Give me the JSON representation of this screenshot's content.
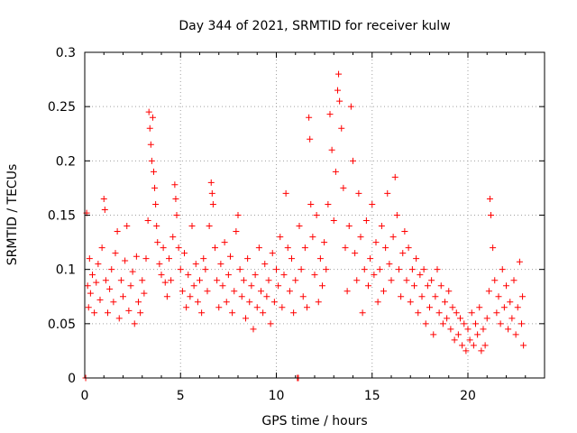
{
  "chart_data": {
    "type": "scatter",
    "title": "Day 344 of 2021, SRMTID for receiver kulw",
    "xlabel": "GPS time / hours",
    "ylabel": "SRMTID / TECUs",
    "xlim": [
      0,
      24
    ],
    "ylim": [
      0,
      0.3
    ],
    "xticks": [
      0,
      5,
      10,
      15,
      20
    ],
    "xtick_labels": [
      "0",
      "5",
      "10",
      "15",
      "20"
    ],
    "yticks": [
      0,
      0.05,
      0.1,
      0.15,
      0.2,
      0.25,
      0.3
    ],
    "ytick_labels": [
      "0",
      "0.05",
      "0.1",
      "0.15",
      "0.2",
      "0.25",
      "0.3"
    ],
    "grid": true,
    "marker": "plus",
    "color": "#ff0000",
    "series": [
      {
        "name": "SRMTID",
        "points": [
          [
            0.05,
            0.0
          ],
          [
            0.1,
            0.152
          ],
          [
            0.15,
            0.085
          ],
          [
            0.2,
            0.065
          ],
          [
            0.25,
            0.11
          ],
          [
            0.3,
            0.078
          ],
          [
            0.4,
            0.095
          ],
          [
            0.5,
            0.06
          ],
          [
            0.6,
            0.088
          ],
          [
            0.7,
            0.105
          ],
          [
            0.8,
            0.072
          ],
          [
            0.9,
            0.12
          ],
          [
            1.0,
            0.165
          ],
          [
            1.05,
            0.155
          ],
          [
            1.1,
            0.09
          ],
          [
            1.2,
            0.06
          ],
          [
            1.3,
            0.082
          ],
          [
            1.4,
            0.1
          ],
          [
            1.5,
            0.07
          ],
          [
            1.6,
            0.115
          ],
          [
            1.7,
            0.135
          ],
          [
            1.8,
            0.055
          ],
          [
            1.9,
            0.09
          ],
          [
            2.0,
            0.075
          ],
          [
            2.1,
            0.108
          ],
          [
            2.2,
            0.14
          ],
          [
            2.3,
            0.062
          ],
          [
            2.4,
            0.085
          ],
          [
            2.5,
            0.098
          ],
          [
            2.6,
            0.05
          ],
          [
            2.7,
            0.112
          ],
          [
            2.8,
            0.07
          ],
          [
            2.9,
            0.06
          ],
          [
            3.0,
            0.09
          ],
          [
            3.1,
            0.078
          ],
          [
            3.2,
            0.11
          ],
          [
            3.3,
            0.145
          ],
          [
            3.35,
            0.245
          ],
          [
            3.4,
            0.23
          ],
          [
            3.45,
            0.215
          ],
          [
            3.5,
            0.2
          ],
          [
            3.55,
            0.24
          ],
          [
            3.6,
            0.19
          ],
          [
            3.65,
            0.175
          ],
          [
            3.7,
            0.16
          ],
          [
            3.75,
            0.14
          ],
          [
            3.8,
            0.125
          ],
          [
            3.9,
            0.105
          ],
          [
            4.0,
            0.095
          ],
          [
            4.1,
            0.12
          ],
          [
            4.2,
            0.088
          ],
          [
            4.3,
            0.075
          ],
          [
            4.4,
            0.11
          ],
          [
            4.5,
            0.09
          ],
          [
            4.6,
            0.13
          ],
          [
            4.7,
            0.178
          ],
          [
            4.75,
            0.165
          ],
          [
            4.8,
            0.15
          ],
          [
            4.9,
            0.12
          ],
          [
            5.0,
            0.1
          ],
          [
            5.1,
            0.08
          ],
          [
            5.2,
            0.115
          ],
          [
            5.3,
            0.065
          ],
          [
            5.4,
            0.095
          ],
          [
            5.5,
            0.075
          ],
          [
            5.6,
            0.14
          ],
          [
            5.7,
            0.085
          ],
          [
            5.8,
            0.105
          ],
          [
            5.9,
            0.07
          ],
          [
            6.0,
            0.09
          ],
          [
            6.1,
            0.06
          ],
          [
            6.2,
            0.11
          ],
          [
            6.3,
            0.1
          ],
          [
            6.4,
            0.08
          ],
          [
            6.5,
            0.14
          ],
          [
            6.6,
            0.18
          ],
          [
            6.65,
            0.17
          ],
          [
            6.7,
            0.16
          ],
          [
            6.8,
            0.12
          ],
          [
            6.9,
            0.09
          ],
          [
            7.0,
            0.065
          ],
          [
            7.1,
            0.105
          ],
          [
            7.2,
            0.085
          ],
          [
            7.3,
            0.125
          ],
          [
            7.4,
            0.07
          ],
          [
            7.5,
            0.095
          ],
          [
            7.6,
            0.112
          ],
          [
            7.7,
            0.06
          ],
          [
            7.8,
            0.08
          ],
          [
            7.9,
            0.135
          ],
          [
            8.0,
            0.15
          ],
          [
            8.1,
            0.1
          ],
          [
            8.2,
            0.075
          ],
          [
            8.3,
            0.09
          ],
          [
            8.4,
            0.055
          ],
          [
            8.5,
            0.11
          ],
          [
            8.6,
            0.07
          ],
          [
            8.7,
            0.085
          ],
          [
            8.8,
            0.045
          ],
          [
            8.9,
            0.095
          ],
          [
            9.0,
            0.065
          ],
          [
            9.1,
            0.12
          ],
          [
            9.2,
            0.08
          ],
          [
            9.3,
            0.06
          ],
          [
            9.4,
            0.105
          ],
          [
            9.5,
            0.075
          ],
          [
            9.6,
            0.09
          ],
          [
            9.7,
            0.05
          ],
          [
            9.8,
            0.115
          ],
          [
            9.9,
            0.07
          ],
          [
            10.0,
            0.1
          ],
          [
            10.1,
            0.085
          ],
          [
            10.2,
            0.13
          ],
          [
            10.3,
            0.065
          ],
          [
            10.4,
            0.095
          ],
          [
            10.5,
            0.17
          ],
          [
            10.6,
            0.12
          ],
          [
            10.7,
            0.08
          ],
          [
            10.8,
            0.11
          ],
          [
            10.9,
            0.06
          ],
          [
            11.0,
            0.09
          ],
          [
            11.1,
            0.0
          ],
          [
            11.15,
            0.0
          ],
          [
            11.2,
            0.14
          ],
          [
            11.3,
            0.1
          ],
          [
            11.4,
            0.075
          ],
          [
            11.5,
            0.12
          ],
          [
            11.6,
            0.065
          ],
          [
            11.7,
            0.24
          ],
          [
            11.75,
            0.22
          ],
          [
            11.8,
            0.16
          ],
          [
            11.9,
            0.13
          ],
          [
            12.0,
            0.095
          ],
          [
            12.1,
            0.15
          ],
          [
            12.2,
            0.07
          ],
          [
            12.3,
            0.11
          ],
          [
            12.4,
            0.085
          ],
          [
            12.5,
            0.125
          ],
          [
            12.6,
            0.1
          ],
          [
            12.7,
            0.16
          ],
          [
            12.8,
            0.243
          ],
          [
            12.9,
            0.21
          ],
          [
            13.0,
            0.145
          ],
          [
            13.1,
            0.19
          ],
          [
            13.2,
            0.265
          ],
          [
            13.25,
            0.28
          ],
          [
            13.3,
            0.255
          ],
          [
            13.4,
            0.23
          ],
          [
            13.5,
            0.175
          ],
          [
            13.6,
            0.12
          ],
          [
            13.7,
            0.08
          ],
          [
            13.8,
            0.14
          ],
          [
            13.9,
            0.25
          ],
          [
            14.0,
            0.2
          ],
          [
            14.1,
            0.115
          ],
          [
            14.2,
            0.09
          ],
          [
            14.3,
            0.17
          ],
          [
            14.4,
            0.13
          ],
          [
            14.5,
            0.06
          ],
          [
            14.6,
            0.1
          ],
          [
            14.7,
            0.145
          ],
          [
            14.8,
            0.085
          ],
          [
            14.9,
            0.11
          ],
          [
            15.0,
            0.16
          ],
          [
            15.1,
            0.095
          ],
          [
            15.2,
            0.125
          ],
          [
            15.3,
            0.07
          ],
          [
            15.4,
            0.1
          ],
          [
            15.5,
            0.14
          ],
          [
            15.6,
            0.08
          ],
          [
            15.7,
            0.12
          ],
          [
            15.8,
            0.17
          ],
          [
            15.9,
            0.105
          ],
          [
            16.0,
            0.09
          ],
          [
            16.1,
            0.13
          ],
          [
            16.2,
            0.185
          ],
          [
            16.3,
            0.15
          ],
          [
            16.4,
            0.1
          ],
          [
            16.5,
            0.075
          ],
          [
            16.6,
            0.115
          ],
          [
            16.7,
            0.135
          ],
          [
            16.8,
            0.09
          ],
          [
            16.9,
            0.12
          ],
          [
            17.0,
            0.07
          ],
          [
            17.1,
            0.1
          ],
          [
            17.2,
            0.085
          ],
          [
            17.3,
            0.11
          ],
          [
            17.4,
            0.06
          ],
          [
            17.5,
            0.095
          ],
          [
            17.6,
            0.075
          ],
          [
            17.7,
            0.1
          ],
          [
            17.8,
            0.05
          ],
          [
            17.9,
            0.085
          ],
          [
            18.0,
            0.065
          ],
          [
            18.1,
            0.09
          ],
          [
            18.2,
            0.04
          ],
          [
            18.3,
            0.075
          ],
          [
            18.4,
            0.1
          ],
          [
            18.5,
            0.06
          ],
          [
            18.6,
            0.085
          ],
          [
            18.7,
            0.05
          ],
          [
            18.8,
            0.07
          ],
          [
            18.9,
            0.055
          ],
          [
            19.0,
            0.08
          ],
          [
            19.1,
            0.045
          ],
          [
            19.2,
            0.065
          ],
          [
            19.3,
            0.035
          ],
          [
            19.4,
            0.06
          ],
          [
            19.5,
            0.04
          ],
          [
            19.6,
            0.055
          ],
          [
            19.7,
            0.03
          ],
          [
            19.8,
            0.05
          ],
          [
            19.9,
            0.025
          ],
          [
            20.0,
            0.045
          ],
          [
            20.1,
            0.035
          ],
          [
            20.2,
            0.06
          ],
          [
            20.3,
            0.03
          ],
          [
            20.4,
            0.05
          ],
          [
            20.5,
            0.04
          ],
          [
            20.6,
            0.065
          ],
          [
            20.7,
            0.025
          ],
          [
            20.8,
            0.045
          ],
          [
            20.9,
            0.03
          ],
          [
            21.0,
            0.055
          ],
          [
            21.1,
            0.08
          ],
          [
            21.15,
            0.165
          ],
          [
            21.2,
            0.15
          ],
          [
            21.3,
            0.12
          ],
          [
            21.4,
            0.09
          ],
          [
            21.5,
            0.06
          ],
          [
            21.6,
            0.075
          ],
          [
            21.7,
            0.05
          ],
          [
            21.8,
            0.1
          ],
          [
            21.9,
            0.065
          ],
          [
            22.0,
            0.085
          ],
          [
            22.1,
            0.045
          ],
          [
            22.2,
            0.07
          ],
          [
            22.3,
            0.055
          ],
          [
            22.4,
            0.09
          ],
          [
            22.5,
            0.04
          ],
          [
            22.6,
            0.065
          ],
          [
            22.7,
            0.107
          ],
          [
            22.8,
            0.05
          ],
          [
            22.85,
            0.075
          ],
          [
            22.9,
            0.03
          ]
        ]
      }
    ]
  }
}
